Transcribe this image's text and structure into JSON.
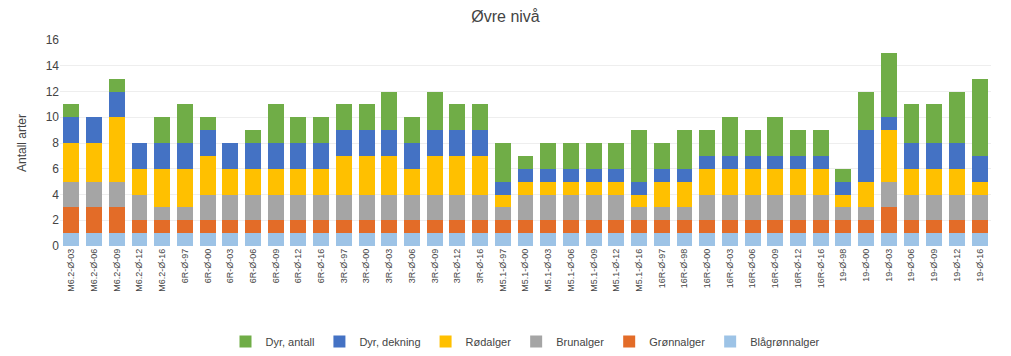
{
  "chart_data": {
    "type": "bar",
    "stacked": true,
    "title": "Øvre nivå",
    "y_label": "Antall arter",
    "categories": [
      "M6.2-Ø-03",
      "M6.2-Ø-06",
      "M6.2-Ø-09",
      "M6.2-Ø-12",
      "M6.2-Ø-16",
      "6R-Ø-97",
      "6R-Ø-00",
      "6R-Ø-03",
      "6R-Ø-06",
      "6R-Ø-09",
      "6R-Ø-12",
      "6R-Ø-16",
      "3R-Ø-97",
      "3R-Ø-00",
      "3R-Ø-03",
      "3R-Ø-06",
      "3R-Ø-09",
      "3R-Ø-12",
      "3R-Ø-16",
      "M5.1-Ø-97",
      "M5.1-Ø-00",
      "M5.1-Ø-03",
      "M5.1-Ø-06",
      "M5.1-Ø-09",
      "M5.1-Ø-12",
      "M5.1-Ø-16",
      "16R-Ø-97",
      "16R-Ø-98",
      "16R-Ø-00",
      "16R-Ø-03",
      "16R-Ø-06",
      "16R-Ø-09",
      "16R-Ø-12",
      "16R-Ø-16",
      "19-Ø-98",
      "19-Ø-00",
      "19-Ø-03",
      "19-Ø-06",
      "19-Ø-09",
      "19-Ø-12",
      "19-Ø-16"
    ],
    "series": [
      {
        "name": "Blågrønnalger",
        "color": "#9dc3e6",
        "values": [
          1,
          1,
          1,
          1,
          1,
          1,
          1,
          1,
          1,
          1,
          1,
          1,
          1,
          1,
          1,
          1,
          1,
          1,
          1,
          1,
          1,
          1,
          1,
          1,
          1,
          1,
          1,
          1,
          1,
          1,
          1,
          1,
          1,
          1,
          1,
          1,
          1,
          1,
          1,
          1,
          1
        ]
      },
      {
        "name": "Grønnalger",
        "color": "#e36c28",
        "values": [
          2,
          2,
          2,
          1,
          1,
          1,
          1,
          1,
          1,
          1,
          1,
          1,
          1,
          1,
          1,
          1,
          1,
          1,
          1,
          1,
          1,
          1,
          1,
          1,
          1,
          1,
          1,
          1,
          1,
          1,
          1,
          1,
          1,
          1,
          1,
          1,
          2,
          1,
          1,
          1,
          1
        ]
      },
      {
        "name": "Brunalger",
        "color": "#a5a5a5",
        "values": [
          2,
          2,
          2,
          2,
          1,
          1,
          2,
          2,
          2,
          2,
          2,
          2,
          2,
          2,
          2,
          2,
          2,
          2,
          2,
          1,
          2,
          2,
          2,
          2,
          2,
          1,
          1,
          1,
          2,
          2,
          2,
          2,
          2,
          2,
          1,
          1,
          2,
          2,
          2,
          2,
          2
        ]
      },
      {
        "name": "Rødalger",
        "color": "#ffc000",
        "values": [
          3,
          3,
          5,
          2,
          3,
          3,
          3,
          2,
          2,
          2,
          2,
          2,
          3,
          3,
          3,
          2,
          3,
          3,
          3,
          1,
          1,
          1,
          1,
          1,
          1,
          1,
          2,
          2,
          2,
          2,
          2,
          2,
          2,
          2,
          1,
          2,
          4,
          2,
          2,
          2,
          1
        ]
      },
      {
        "name": "Dyr, dekning",
        "color": "#4472c4",
        "values": [
          2,
          2,
          2,
          2,
          2,
          2,
          2,
          2,
          2,
          2,
          2,
          2,
          2,
          2,
          2,
          2,
          2,
          2,
          2,
          1,
          1,
          1,
          1,
          1,
          1,
          1,
          1,
          1,
          1,
          1,
          1,
          1,
          1,
          1,
          1,
          4,
          1,
          2,
          2,
          2,
          2
        ]
      },
      {
        "name": "Dyr, antall",
        "color": "#70ad47",
        "values": [
          1,
          0,
          1,
          0,
          2,
          3,
          1,
          0,
          1,
          3,
          2,
          2,
          2,
          2,
          3,
          2,
          3,
          2,
          2,
          3,
          1,
          2,
          2,
          2,
          2,
          4,
          2,
          3,
          2,
          3,
          2,
          3,
          2,
          2,
          1,
          3,
          5,
          3,
          3,
          4,
          6
        ]
      }
    ],
    "ylim": [
      0,
      16
    ],
    "yticks": [
      0,
      2,
      4,
      6,
      8,
      10,
      12,
      14,
      16
    ],
    "grid": true,
    "legend": "bottom"
  }
}
